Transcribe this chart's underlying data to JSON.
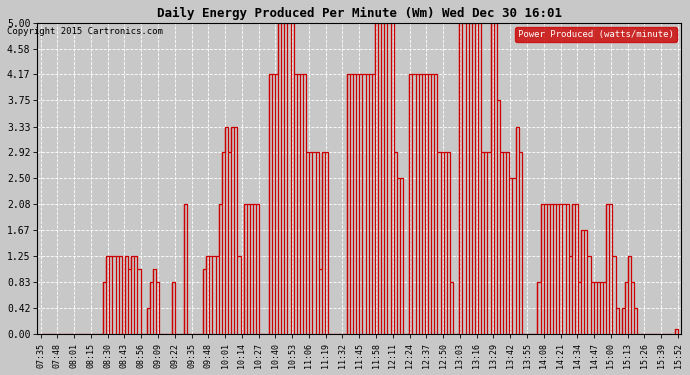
{
  "title": "Daily Energy Produced Per Minute (Wm) Wed Dec 30 16:01",
  "copyright": "Copyright 2015 Cartronics.com",
  "legend_label": "Power Produced (watts/minute)",
  "legend_bg": "#cc0000",
  "legend_fg": "#ffffff",
  "line_color": "#cc0000",
  "bg_color": "#c8c8c8",
  "plot_bg": "#c8c8c8",
  "ylim": [
    0.0,
    5.0
  ],
  "yticks": [
    0.0,
    0.42,
    0.83,
    1.25,
    1.67,
    2.08,
    2.5,
    2.92,
    3.33,
    3.75,
    4.17,
    4.58,
    5.0
  ],
  "xtick_labels": [
    "07:35",
    "07:48",
    "08:01",
    "08:15",
    "08:30",
    "08:43",
    "08:56",
    "09:09",
    "09:22",
    "09:35",
    "09:48",
    "10:01",
    "10:14",
    "10:27",
    "10:40",
    "10:53",
    "11:06",
    "11:19",
    "11:32",
    "11:45",
    "11:58",
    "12:11",
    "12:24",
    "12:37",
    "12:50",
    "13:03",
    "13:16",
    "13:29",
    "13:42",
    "13:55",
    "14:08",
    "14:21",
    "14:34",
    "14:47",
    "15:00",
    "15:13",
    "15:26",
    "15:39",
    "15:52"
  ],
  "time_series": [
    [
      0,
      0.0
    ],
    [
      1,
      0.0
    ],
    [
      2,
      0.0
    ],
    [
      3,
      0.0
    ],
    [
      4,
      0.0
    ],
    [
      5,
      0.0
    ],
    [
      6,
      0.0
    ],
    [
      7,
      0.0
    ],
    [
      8,
      0.0
    ],
    [
      9,
      0.0
    ],
    [
      10,
      0.0
    ],
    [
      11,
      0.0
    ],
    [
      12,
      0.0
    ],
    [
      13,
      0.0
    ],
    [
      14,
      0.0
    ],
    [
      15,
      0.0
    ],
    [
      16,
      0.0
    ],
    [
      17,
      0.0
    ],
    [
      18,
      0.0
    ],
    [
      19,
      0.0
    ],
    [
      20,
      0.83
    ],
    [
      21,
      1.25
    ],
    [
      22,
      1.25
    ],
    [
      23,
      1.25
    ],
    [
      24,
      1.25
    ],
    [
      25,
      1.25
    ],
    [
      26,
      0.0
    ],
    [
      27,
      1.25
    ],
    [
      28,
      1.04
    ],
    [
      29,
      1.25
    ],
    [
      30,
      1.25
    ],
    [
      31,
      1.04
    ],
    [
      32,
      0.0
    ],
    [
      33,
      0.0
    ],
    [
      34,
      0.42
    ],
    [
      35,
      0.83
    ],
    [
      36,
      1.04
    ],
    [
      37,
      0.83
    ],
    [
      38,
      0.0
    ],
    [
      39,
      0.0
    ],
    [
      40,
      0.0
    ],
    [
      41,
      0.0
    ],
    [
      42,
      0.83
    ],
    [
      43,
      0.0
    ],
    [
      44,
      0.0
    ],
    [
      45,
      0.0
    ],
    [
      46,
      2.08
    ],
    [
      47,
      0.0
    ],
    [
      48,
      0.0
    ],
    [
      49,
      0.0
    ],
    [
      50,
      0.0
    ],
    [
      51,
      0.0
    ],
    [
      52,
      1.04
    ],
    [
      53,
      1.25
    ],
    [
      54,
      1.25
    ],
    [
      55,
      1.25
    ],
    [
      56,
      1.25
    ],
    [
      57,
      2.08
    ],
    [
      58,
      2.92
    ],
    [
      59,
      3.33
    ],
    [
      60,
      2.92
    ],
    [
      61,
      3.33
    ],
    [
      62,
      3.33
    ],
    [
      63,
      1.25
    ],
    [
      64,
      0.0
    ],
    [
      65,
      2.08
    ],
    [
      66,
      2.08
    ],
    [
      67,
      2.08
    ],
    [
      68,
      2.08
    ],
    [
      69,
      2.08
    ],
    [
      70,
      0.0
    ],
    [
      71,
      0.0
    ],
    [
      72,
      0.0
    ],
    [
      73,
      4.17
    ],
    [
      74,
      4.17
    ],
    [
      75,
      4.17
    ],
    [
      76,
      5.0
    ],
    [
      77,
      5.0
    ],
    [
      78,
      5.0
    ],
    [
      79,
      5.0
    ],
    [
      80,
      5.0
    ],
    [
      81,
      4.17
    ],
    [
      82,
      4.17
    ],
    [
      83,
      4.17
    ],
    [
      84,
      4.17
    ],
    [
      85,
      2.92
    ],
    [
      86,
      2.92
    ],
    [
      87,
      2.92
    ],
    [
      88,
      2.92
    ],
    [
      89,
      1.04
    ],
    [
      90,
      2.92
    ],
    [
      91,
      2.92
    ],
    [
      92,
      0.0
    ],
    [
      93,
      0.0
    ],
    [
      94,
      0.0
    ],
    [
      95,
      0.0
    ],
    [
      96,
      0.0
    ],
    [
      97,
      0.0
    ],
    [
      98,
      4.17
    ],
    [
      99,
      4.17
    ],
    [
      100,
      4.17
    ],
    [
      101,
      4.17
    ],
    [
      102,
      4.17
    ],
    [
      103,
      4.17
    ],
    [
      104,
      4.17
    ],
    [
      105,
      4.17
    ],
    [
      106,
      4.17
    ],
    [
      107,
      5.0
    ],
    [
      108,
      5.0
    ],
    [
      109,
      5.0
    ],
    [
      110,
      5.0
    ],
    [
      111,
      5.0
    ],
    [
      112,
      5.0
    ],
    [
      113,
      2.92
    ],
    [
      114,
      2.5
    ],
    [
      115,
      2.5
    ],
    [
      116,
      0.0
    ],
    [
      117,
      0.0
    ],
    [
      118,
      4.17
    ],
    [
      119,
      4.17
    ],
    [
      120,
      4.17
    ],
    [
      121,
      4.17
    ],
    [
      122,
      4.17
    ],
    [
      123,
      4.17
    ],
    [
      124,
      4.17
    ],
    [
      125,
      4.17
    ],
    [
      126,
      4.17
    ],
    [
      127,
      2.92
    ],
    [
      128,
      2.92
    ],
    [
      129,
      2.92
    ],
    [
      130,
      2.92
    ],
    [
      131,
      0.83
    ],
    [
      132,
      0.0
    ],
    [
      133,
      0.0
    ],
    [
      134,
      5.0
    ],
    [
      135,
      5.0
    ],
    [
      136,
      5.0
    ],
    [
      137,
      5.0
    ],
    [
      138,
      5.0
    ],
    [
      139,
      5.0
    ],
    [
      140,
      5.0
    ],
    [
      141,
      2.92
    ],
    [
      142,
      2.92
    ],
    [
      143,
      2.92
    ],
    [
      144,
      5.0
    ],
    [
      145,
      5.0
    ],
    [
      146,
      3.75
    ],
    [
      147,
      2.92
    ],
    [
      148,
      2.92
    ],
    [
      149,
      2.92
    ],
    [
      150,
      2.5
    ],
    [
      151,
      2.5
    ],
    [
      152,
      3.33
    ],
    [
      153,
      2.92
    ],
    [
      154,
      0.0
    ],
    [
      155,
      0.0
    ],
    [
      156,
      0.0
    ],
    [
      157,
      0.0
    ],
    [
      158,
      0.0
    ],
    [
      159,
      0.83
    ],
    [
      160,
      2.08
    ],
    [
      161,
      2.08
    ],
    [
      162,
      2.08
    ],
    [
      163,
      2.08
    ],
    [
      164,
      2.08
    ],
    [
      165,
      2.08
    ],
    [
      166,
      2.08
    ],
    [
      167,
      2.08
    ],
    [
      168,
      2.08
    ],
    [
      169,
      1.25
    ],
    [
      170,
      2.08
    ],
    [
      171,
      2.08
    ],
    [
      172,
      0.83
    ],
    [
      173,
      1.67
    ],
    [
      174,
      1.67
    ],
    [
      175,
      1.25
    ],
    [
      176,
      0.83
    ],
    [
      177,
      0.83
    ],
    [
      178,
      0.83
    ],
    [
      179,
      0.83
    ],
    [
      180,
      0.83
    ],
    [
      181,
      2.08
    ],
    [
      182,
      2.08
    ],
    [
      183,
      1.25
    ],
    [
      184,
      0.42
    ],
    [
      185,
      0.0
    ],
    [
      186,
      0.42
    ],
    [
      187,
      0.83
    ],
    [
      188,
      1.25
    ],
    [
      189,
      0.83
    ],
    [
      190,
      0.42
    ],
    [
      191,
      0.0
    ],
    [
      192,
      0.0
    ],
    [
      193,
      0.0
    ],
    [
      194,
      0.0
    ],
    [
      195,
      0.0
    ],
    [
      196,
      0.0
    ],
    [
      197,
      0.0
    ],
    [
      198,
      0.0
    ],
    [
      199,
      0.0
    ],
    [
      200,
      0.0
    ],
    [
      201,
      0.0
    ],
    [
      202,
      0.0
    ],
    [
      203,
      0.08
    ],
    [
      204,
      0.0
    ]
  ]
}
